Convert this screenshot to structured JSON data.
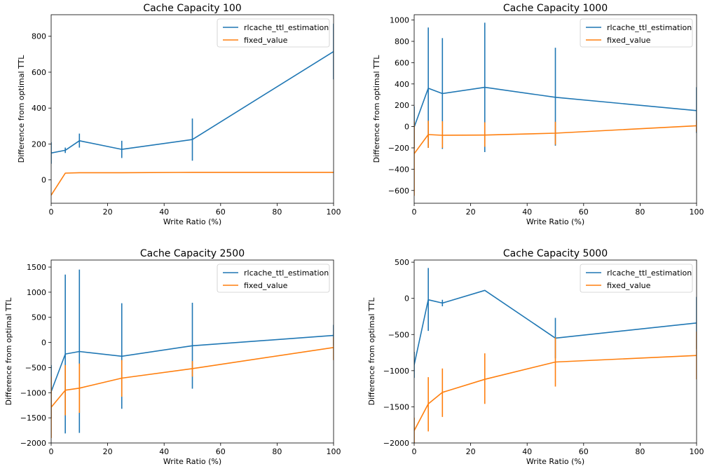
{
  "colors": {
    "rlcache": "#1f77b4",
    "fixed": "#ff7f0e"
  },
  "chart_data": [
    {
      "type": "line",
      "title": "Cache Capacity 100",
      "xlabel": "Write Ratio (%)",
      "ylabel": "Difference from optimal TTL",
      "xlim": [
        0,
        100
      ],
      "ylim": [
        -130,
        920
      ],
      "xticks": [
        0,
        20,
        40,
        60,
        80,
        100
      ],
      "yticks": [
        0,
        200,
        400,
        600,
        800
      ],
      "legend": "top-right",
      "x": [
        0,
        5,
        10,
        25,
        50,
        100
      ],
      "series": [
        {
          "name": "rlcache_ttl_estimation",
          "color": "#1f77b4",
          "values": [
            150,
            165,
            218,
            170,
            225,
            715
          ],
          "err_low": [
            90,
            150,
            180,
            122,
            107,
            560
          ],
          "err_high": [
            210,
            180,
            258,
            218,
            342,
            870
          ]
        },
        {
          "name": "fixed_value",
          "color": "#ff7f0e",
          "values": [
            -85,
            38,
            40,
            40,
            42,
            42
          ],
          "err_low": [
            -85,
            38,
            40,
            40,
            42,
            42
          ],
          "err_high": [
            -85,
            38,
            40,
            40,
            42,
            42
          ]
        }
      ]
    },
    {
      "type": "line",
      "title": "Cache Capacity 1000",
      "xlabel": "Write Ratio (%)",
      "ylabel": "Difference from optimal TTL",
      "xlim": [
        0,
        100
      ],
      "ylim": [
        -720,
        1050
      ],
      "xticks": [
        0,
        20,
        40,
        60,
        80,
        100
      ],
      "yticks": [
        -600,
        -400,
        -200,
        0,
        200,
        400,
        600,
        800,
        1000
      ],
      "legend": "top-right",
      "x": [
        0,
        5,
        10,
        25,
        50,
        100
      ],
      "series": [
        {
          "name": "rlcache_ttl_estimation",
          "color": "#1f77b4",
          "values": [
            -5,
            360,
            310,
            368,
            275,
            150
          ],
          "err_low": [
            -200,
            -200,
            -210,
            -240,
            -180,
            -60
          ],
          "err_high": [
            190,
            930,
            830,
            975,
            740,
            370
          ]
        },
        {
          "name": "fixed_value",
          "color": "#ff7f0e",
          "values": [
            -255,
            -75,
            -82,
            -80,
            -62,
            8
          ],
          "err_low": [
            -650,
            -200,
            -200,
            -190,
            -170,
            -50
          ],
          "err_high": [
            50,
            55,
            50,
            40,
            45,
            60
          ]
        }
      ]
    },
    {
      "type": "line",
      "title": "Cache Capacity 2500",
      "xlabel": "Write Ratio (%)",
      "ylabel": "Difference from optimal TTL",
      "xlim": [
        0,
        100
      ],
      "ylim": [
        -2000,
        1640
      ],
      "xticks": [
        0,
        20,
        40,
        60,
        80,
        100
      ],
      "yticks": [
        -2000,
        -1500,
        -1000,
        -500,
        0,
        500,
        1000,
        1500
      ],
      "legend": "top-right",
      "x": [
        0,
        5,
        10,
        25,
        50,
        100
      ],
      "series": [
        {
          "name": "rlcache_ttl_estimation",
          "color": "#1f77b4",
          "values": [
            -980,
            -230,
            -180,
            -275,
            -65,
            140
          ],
          "err_low": [
            -1500,
            -1810,
            -1800,
            -1320,
            -920,
            -60
          ],
          "err_high": [
            -450,
            1350,
            1450,
            780,
            790,
            350
          ]
        },
        {
          "name": "fixed_value",
          "color": "#ff7f0e",
          "values": [
            -1290,
            -950,
            -910,
            -710,
            -520,
            -100
          ],
          "err_low": [
            -1900,
            -1450,
            -1400,
            -1080,
            -680,
            -350
          ],
          "err_high": [
            -680,
            -450,
            -420,
            -350,
            -370,
            100
          ]
        }
      ]
    },
    {
      "type": "line",
      "title": "Cache Capacity 5000",
      "xlabel": "Write Ratio (%)",
      "ylabel": "Difference from optimal TTL",
      "xlim": [
        0,
        100
      ],
      "ylim": [
        -2000,
        530
      ],
      "xticks": [
        0,
        20,
        40,
        60,
        80,
        100
      ],
      "yticks": [
        -2000,
        -1500,
        -1000,
        -500,
        0,
        500
      ],
      "legend": "top-right",
      "x": [
        0,
        5,
        10,
        25,
        50,
        100
      ],
      "series": [
        {
          "name": "rlcache_ttl_estimation",
          "color": "#1f77b4",
          "values": [
            -920,
            -20,
            -65,
            110,
            -550,
            -340
          ],
          "err_low": [
            -1100,
            -450,
            -110,
            110,
            -830,
            -700
          ],
          "err_high": [
            -740,
            420,
            -20,
            110,
            -270,
            20
          ]
        },
        {
          "name": "fixed_value",
          "color": "#ff7f0e",
          "values": [
            -1830,
            -1460,
            -1300,
            -1120,
            -880,
            -790
          ],
          "err_low": [
            -2000,
            -1840,
            -1640,
            -1460,
            -1220,
            -1120
          ],
          "err_high": [
            -1650,
            -1090,
            -970,
            -760,
            -540,
            -460
          ]
        }
      ]
    }
  ]
}
